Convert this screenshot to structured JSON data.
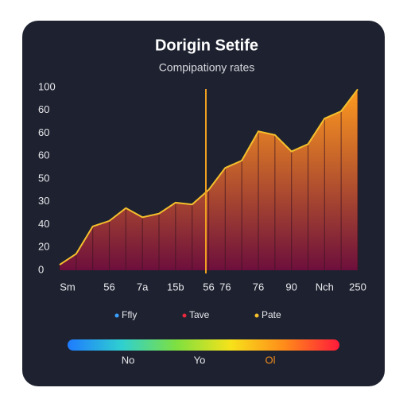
{
  "chart_data": {
    "type": "area",
    "title": "Dorigin Setife",
    "subtitle": "Compipationy rates",
    "categories": [
      "Sm",
      null,
      null,
      "56",
      null,
      "7a",
      null,
      "15b",
      null,
      "56",
      "76",
      null,
      "76",
      null,
      "90",
      null,
      "Nch",
      null,
      "250"
    ],
    "series": [
      {
        "color": "#f5c02c",
        "values": [
          3,
          9,
          24,
          27,
          34,
          29,
          31,
          37,
          36,
          44,
          56,
          60,
          76,
          74,
          65,
          69,
          83,
          87,
          99
        ]
      }
    ],
    "gradient": [
      "#ff9a1f",
      "#6d0f3c"
    ],
    "ylim": [
      0,
      100
    ],
    "yticks": [
      0,
      {
        "value": 12.5,
        "label": "20"
      },
      {
        "value": 25,
        "label": "40"
      },
      {
        "value": 37.5,
        "label": "30"
      },
      {
        "value": 50,
        "label": "50"
      },
      {
        "value": 62.5,
        "label": "60"
      },
      {
        "value": 75,
        "label": "60"
      },
      {
        "value": 87.5,
        "label": "60"
      },
      100
    ],
    "legend": [
      {
        "name": "Ffly",
        "color": "#3aa0ff"
      },
      {
        "name": "Tave",
        "color": "#e8283c"
      },
      {
        "name": "Pate",
        "color": "#f5c02c"
      }
    ],
    "colorbar": {
      "colors": [
        "#1e7bff",
        "#2fd0d0",
        "#7ee040",
        "#f7e21a",
        "#ff8a1a",
        "#ff1a3a"
      ],
      "labels": [
        "No",
        "Yo",
        "Ol"
      ],
      "label_colors": [
        "#e8e8ec",
        "#e8e8ec",
        "#f08a1e"
      ]
    }
  }
}
